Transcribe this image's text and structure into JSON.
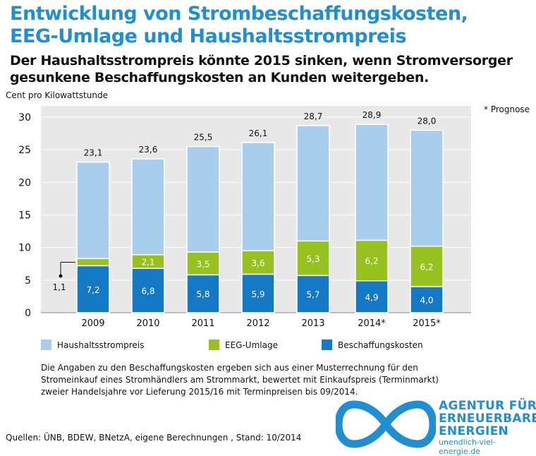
{
  "title_line1": "Entwicklung von Strombeschaffungskosten,",
  "title_line2": "EEG-Umlage und  Haushaltsstrompreis",
  "subtitle_line1": "Der Haushaltsstrompreis könnte 2015 sinken, wenn Stromversorger",
  "subtitle_line2": "gesunkene Beschaffungskosten an Kunden weitergeben.",
  "prognose_note": "* Prognose",
  "legend": {
    "haushalt": "Haushaltsstrompreis",
    "eeg": "EEG-Umlage",
    "beschaffung": "Beschaffungskosten"
  },
  "note_line1": "Die Angaben zu den Beschaffungskosten ergeben sich aus einer Musterrechnung  für den",
  "note_line2": "Stromeinkauf eines Stromhändlers  am Strommarkt, bewertet mit Einkaufspreis (Terminmarkt)",
  "note_line3": "zweier Handelsjahre vor Lieferung 2015/16 mit Terminpreisen bis 09/2014.",
  "sources": "Quellen: ÜNB, BDEW, BNetzA, eigene Berechnungen , Stand: 10/2014",
  "logo": {
    "line1": "AGENTUR FÜR",
    "line2": "ERNEUERBARE",
    "line3": "ENERGIEN",
    "url": "unendlich-viel-energie.de"
  },
  "colors": {
    "haushalt": "#a9cdec",
    "eeg": "#97c11f",
    "beschaffung": "#1479c4",
    "plot_bg": "#e8e8e8",
    "title": "#1f8fd1"
  },
  "chart_data": {
    "type": "bar",
    "stacked": true,
    "ylabel": "Cent pro Kilowattstunde",
    "ylim": [
      0,
      30
    ],
    "yticks": [
      0,
      5,
      10,
      15,
      20,
      25,
      30
    ],
    "categories": [
      "2009",
      "2010",
      "2011",
      "2012",
      "2013",
      "2014*",
      "2015*"
    ],
    "beschaffung": [
      7.2,
      6.8,
      5.8,
      5.9,
      5.7,
      4.9,
      4.0
    ],
    "eeg": [
      1.1,
      2.1,
      3.5,
      3.6,
      5.3,
      6.2,
      6.2
    ],
    "total": [
      23.1,
      23.6,
      25.5,
      26.1,
      28.7,
      28.9,
      28.0
    ],
    "beschaffung_labels": [
      "7,2",
      "6,8",
      "5,8",
      "5,9",
      "5,7",
      "4,9",
      "4,0"
    ],
    "eeg_labels": [
      "1,1",
      "2,1",
      "3,5",
      "3,6",
      "5,3",
      "6,2",
      "6,2"
    ],
    "total_labels": [
      "23,1",
      "23,6",
      "25,5",
      "26,1",
      "28,7",
      "28,9",
      "28,0"
    ],
    "grid": true
  }
}
